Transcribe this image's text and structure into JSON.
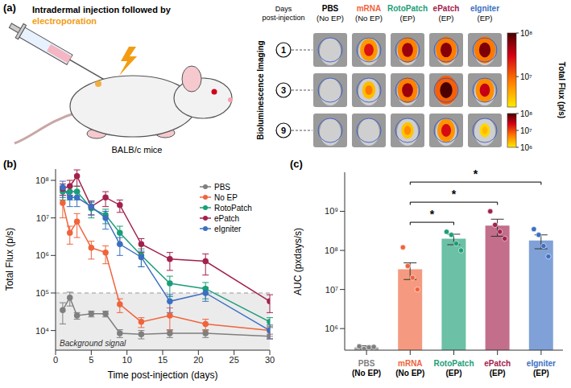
{
  "panel_a": {
    "label": "(a)",
    "text": "Intradermal injection followed by",
    "highlight": "electroporation",
    "mouse": "BALB/c mice",
    "imaging": "Bioluminescence Imaging",
    "days_label": "Days post-injection",
    "days": [
      1,
      3,
      9
    ],
    "columns": [
      {
        "name": "PBS",
        "condition": "(No EP)",
        "color": "#000000"
      },
      {
        "name": "mRNA",
        "condition": "(No EP)",
        "color": "#f0643c"
      },
      {
        "name": "RotoPatch",
        "condition": "(EP)",
        "color": "#1b9e77"
      },
      {
        "name": "ePatch",
        "condition": "(EP)",
        "color": "#a3214b"
      },
      {
        "name": "eIgniter",
        "condition": "(EP)",
        "color": "#3c6fc1"
      }
    ],
    "colorbar_title": "Total Flux (p/s)",
    "colorbars": [
      {
        "rows": [
          1,
          3
        ],
        "range": [
          2000000,
          100000000
        ],
        "ticks": [
          {
            "value": 100000000,
            "label": "10⁸"
          },
          {
            "value": 10000000,
            "label": "10⁷"
          }
        ]
      },
      {
        "rows": [
          9
        ],
        "range": [
          1000000,
          100000000
        ],
        "ticks": [
          {
            "value": 100000000,
            "label": "10⁸"
          },
          {
            "value": 10000000,
            "label": "10⁷"
          },
          {
            "value": 1000000,
            "label": "10⁶"
          }
        ]
      }
    ]
  },
  "chart_data": [
    {
      "type": "line",
      "panel": "(b)",
      "x_label": "Time post-injection (days)",
      "y_label": "Total Flux (p/s)",
      "x": [
        1,
        2,
        3,
        5,
        7,
        9,
        12,
        16,
        21,
        30
      ],
      "xlim": [
        0,
        30
      ],
      "xticks": [
        0,
        5,
        10,
        15,
        20,
        25,
        30
      ],
      "ylim": [
        3000,
        200000000
      ],
      "yticks": [
        {
          "value": 10000,
          "label": "10⁴"
        },
        {
          "value": 100000,
          "label": "10⁵"
        },
        {
          "value": 1000000,
          "label": "10⁶"
        },
        {
          "value": 10000000,
          "label": "10⁷"
        },
        {
          "value": 100000000,
          "label": "10⁸"
        }
      ],
      "log": "y",
      "grid": false,
      "legend": "upper right",
      "reference_line": {
        "value": 100000,
        "label": "Background signal"
      },
      "series": [
        {
          "name": "PBS",
          "color": "#7f7f7f",
          "marker": "circle",
          "values": [
            35000,
            75000,
            25000,
            28000,
            28000,
            8500,
            8000,
            8500,
            8500,
            7000
          ],
          "errors": [
            20000,
            30000,
            5000,
            5000,
            5000,
            2000,
            2000,
            2000,
            2000,
            1000
          ]
        },
        {
          "name": "No EP",
          "color": "#f0643c",
          "marker": "circle",
          "values": [
            25000000,
            4000000,
            8000000,
            1600000,
            1200000,
            50000,
            17000,
            25000,
            15000,
            10000
          ],
          "errors": [
            15000000,
            2000000,
            5000000,
            800000,
            600000,
            20000,
            5000,
            15000,
            5000,
            3000
          ]
        },
        {
          "name": "RotoPatch",
          "color": "#1b9e77",
          "marker": "circle",
          "values": [
            50000000,
            50000000,
            50000000,
            18000000,
            12000000,
            4000000,
            1000000,
            180000,
            130000,
            17000
          ],
          "errors": [
            20000000,
            20000000,
            20000000,
            8000000,
            5000000,
            2000000,
            500000,
            100000,
            60000,
            5000
          ]
        },
        {
          "name": "ePatch",
          "color": "#a3214b",
          "marker": "circle",
          "values": [
            60000000,
            70000000,
            130000000,
            20000000,
            35000000,
            22000000,
            2000000,
            800000,
            700000,
            60000
          ],
          "errors": [
            20000000,
            30000000,
            60000000,
            8000000,
            15000000,
            8000000,
            800000,
            400000,
            400000,
            30000
          ]
        },
        {
          "name": "eIgniter",
          "color": "#3c6fc1",
          "marker": "circle",
          "values": [
            65000000,
            35000000,
            35000000,
            20000000,
            10000000,
            2000000,
            900000,
            60000,
            100000,
            10000
          ],
          "errors": [
            30000000,
            15000000,
            15000000,
            8000000,
            5000000,
            1000000,
            400000,
            30000,
            40000,
            4000
          ]
        }
      ]
    },
    {
      "type": "bar",
      "panel": "(c)",
      "y_label": "AUC (pxdays/s)",
      "categories": [
        "PBS (No EP)",
        "mRNA (No EP)",
        "RotoPatch (EP)",
        "ePatch (EP)",
        "eIgniter (EP)"
      ],
      "values": [
        330000,
        33000000,
        200000000,
        430000000,
        180000000
      ],
      "errors": [
        30000,
        15000000,
        60000000,
        200000000,
        70000000
      ],
      "points": [
        [
          350000,
          300000,
          330000,
          340000
        ],
        [
          120000000,
          40000000,
          20000000,
          10000000
        ],
        [
          300000000,
          250000000,
          150000000,
          100000000
        ],
        [
          1000000000,
          450000000,
          300000000,
          200000000
        ],
        [
          350000000,
          250000000,
          130000000,
          70000000
        ]
      ],
      "colors": [
        "#7f7f7f",
        "#f0643c",
        "#1b9e77",
        "#a3214b",
        "#3c6fc1"
      ],
      "ylim": [
        280000,
        10000000000
      ],
      "yticks": [
        {
          "value": 1000000,
          "label": "10⁶"
        },
        {
          "value": 10000000,
          "label": "10⁷"
        },
        {
          "value": 100000000,
          "label": "10⁸"
        },
        {
          "value": 1000000000,
          "label": "10⁹"
        }
      ],
      "log": "y",
      "grid": false,
      "comparisons": [
        {
          "from": "mRNA (No EP)",
          "to": "RotoPatch (EP)",
          "label": "*"
        },
        {
          "from": "mRNA (No EP)",
          "to": "ePatch (EP)",
          "label": "*"
        },
        {
          "from": "mRNA (No EP)",
          "to": "eIgniter (EP)",
          "label": "*"
        }
      ]
    }
  ]
}
